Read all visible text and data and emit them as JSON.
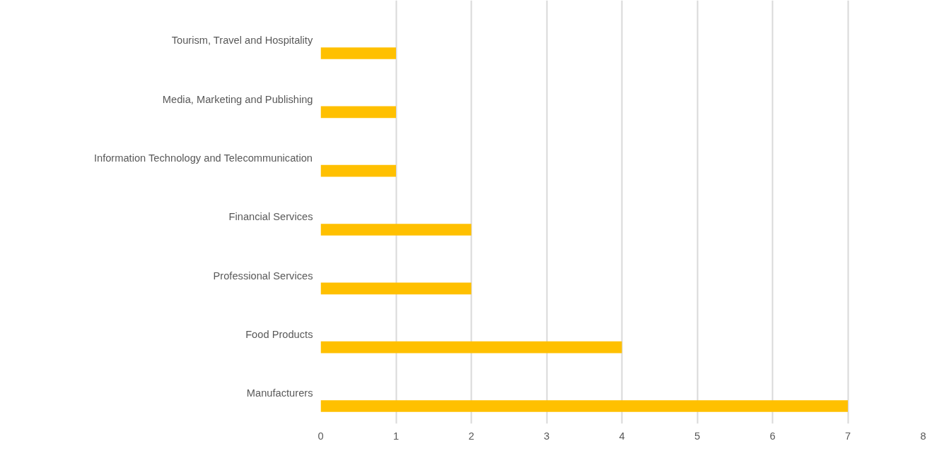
{
  "chart_data": {
    "type": "bar",
    "orientation": "horizontal",
    "categories": [
      "Tourism, Travel and Hospitality",
      "Media, Marketing and Publishing",
      "Information Technology and Telecommunication",
      "Financial Services",
      "Professional Services",
      "Food Products",
      "Manufacturers"
    ],
    "values": [
      1,
      1,
      1,
      2,
      2,
      4,
      7
    ],
    "color": "#ffc000",
    "xlim": [
      0,
      8
    ],
    "xticks": [
      0,
      1,
      2,
      3,
      4,
      5,
      6,
      7,
      8
    ],
    "grid": "x"
  }
}
